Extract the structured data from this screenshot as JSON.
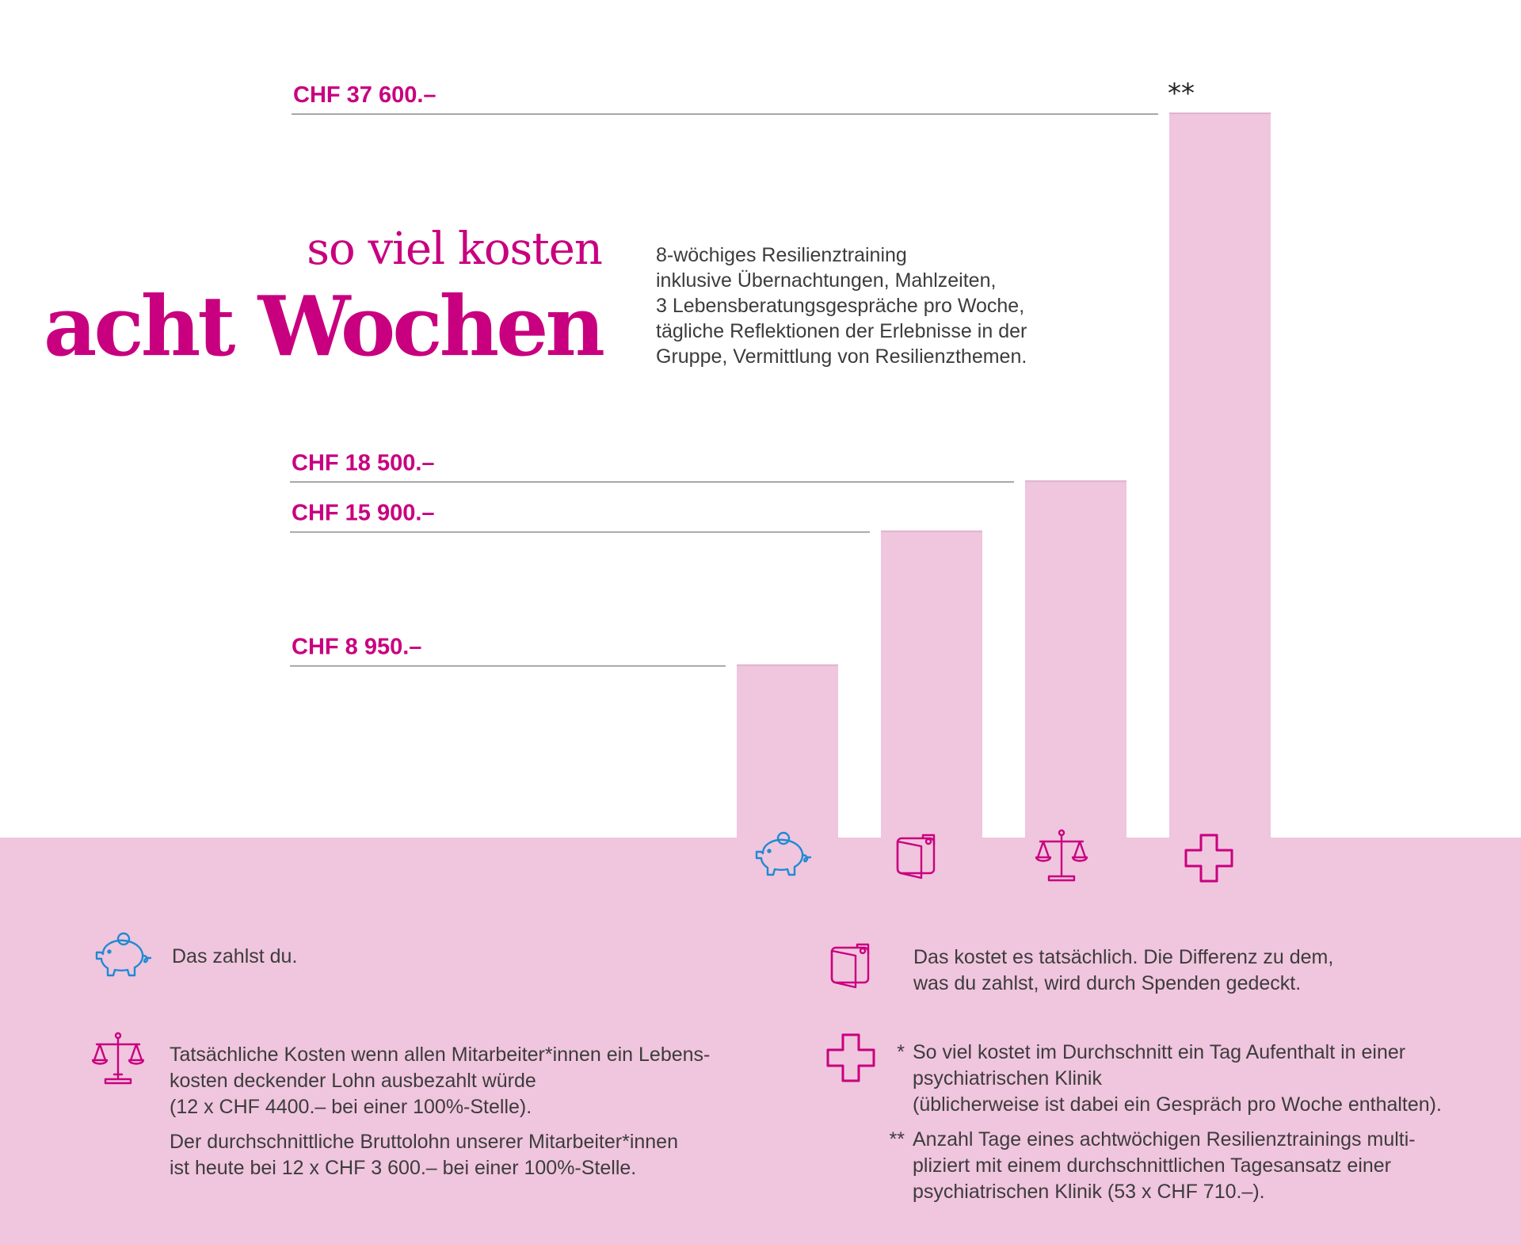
{
  "title": {
    "line1": "so viel kosten",
    "line2": "acht Wochen"
  },
  "description": [
    "8-wöchiges Resilienztraining",
    "inklusive Übernachtungen, Mahlzeiten,",
    "3 Lebensberatungsgespräche pro Woche,",
    "tägliche Reflektionen der Erlebnisse in der",
    "Gruppe, Vermittlung von Resilienzthemen."
  ],
  "colors": {
    "accent": "#c8007f",
    "bar": "#f0c5de",
    "icon_blue": "#1e8ad2"
  },
  "chart_data": {
    "type": "bar",
    "categories": [
      "piggy-bank",
      "wallet",
      "scales",
      "medical-cross"
    ],
    "values": [
      8950,
      15900,
      18500,
      37600
    ],
    "value_labels": [
      "CHF 8 950.–",
      "CHF 15 900.–",
      "CHF 18 500.–",
      "CHF 37 600.–"
    ],
    "value_annotations": [
      "",
      "",
      "",
      "**"
    ],
    "icons": [
      "piggy-bank-icon",
      "wallet-icon",
      "scales-icon",
      "cross-icon"
    ],
    "ylim": [
      0,
      37600
    ],
    "grid": false,
    "title": "",
    "xlabel": "",
    "ylabel": ""
  },
  "legend": {
    "piggy": [
      "Das zahlst du."
    ],
    "wallet": [
      "Das kostet es tatsächlich. Die Differenz zu dem,",
      "was du zahlst, wird durch Spenden gedeckt."
    ],
    "scales": [
      "Tatsächliche Kosten wenn allen Mitarbeiter*innen ein Lebens-",
      "kosten deckender Lohn ausbezahlt würde",
      " (12 x CHF 4400.– bei einer 100%-Stelle)."
    ],
    "scales_note": [
      "Der durchschnittliche Bruttolohn unserer Mitarbeiter*innen",
      "ist heute bei 12 x CHF 3 600.– bei einer 100%-Stelle."
    ],
    "cross_note1_mark": "*",
    "cross_note1": [
      "So viel kostet im Durchschnitt ein Tag Aufenthalt in einer",
      "psychiatrischen Klinik",
      "(üblicherweise ist dabei ein Gespräch pro Woche enthalten)."
    ],
    "cross_note2_mark": "**",
    "cross_note2": [
      "Anzahl Tage eines achtwöchigen Resilienztrainings multi-",
      "pliziert mit einem durchschnittlichen Tagesansatz einer",
      "psychiatrischen Klinik (53 x CHF 710.–)."
    ]
  }
}
